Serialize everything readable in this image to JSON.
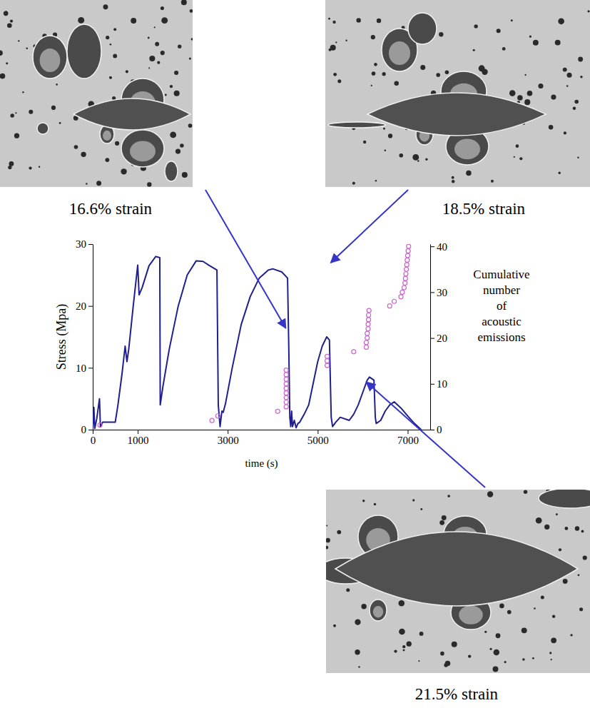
{
  "chart_data": {
    "type": "line",
    "ylabel": "Stress (Mpa)",
    "y2label": "Cumulative number of acoustic emissions",
    "xlabel": "time (s)",
    "xlim": [
      0,
      7500
    ],
    "xticks": [
      0,
      1000,
      3000,
      5000,
      7000
    ],
    "ylim": [
      0,
      30
    ],
    "yticks": [
      0,
      10,
      20,
      30
    ],
    "y2lim": [
      0,
      40.5
    ],
    "y2ticks": [
      0,
      10,
      20,
      30,
      40
    ],
    "series": [
      {
        "type": "line",
        "color": "#1f1f8f",
        "x": [
          0,
          25,
          45,
          90,
          150,
          170,
          220,
          500,
          560,
          650,
          720,
          760,
          800,
          900,
          1000,
          1030,
          1100,
          1250,
          1400,
          1490,
          1500,
          1560,
          1700,
          1900,
          2100,
          2300,
          2450,
          2600,
          2760,
          2790,
          2830,
          2870,
          2900,
          2950,
          3100,
          3300,
          3500,
          3700,
          3900,
          4000,
          4200,
          4330,
          4360,
          4380,
          4400,
          4420,
          4440,
          4480,
          4520,
          4560,
          4600,
          4700,
          4800,
          4900,
          5000,
          5100,
          5200,
          5260,
          5300,
          5330,
          5400,
          5500,
          5700,
          5800,
          5900,
          6000,
          6100,
          6150,
          6250,
          6280,
          6300,
          6400,
          6500,
          6600,
          6700,
          6850,
          7000,
          7150,
          7300
        ],
        "values": [
          0,
          3.6,
          0.2,
          1.8,
          5,
          0.5,
          1.2,
          1.2,
          4,
          9,
          13.5,
          11,
          13,
          20,
          26.6,
          21.8,
          23,
          26.5,
          28,
          27.8,
          4,
          7,
          13,
          20,
          25,
          27.3,
          27.2,
          26.5,
          25.8,
          4,
          0.5,
          3,
          2.8,
          4.2,
          10,
          17,
          21.5,
          24.5,
          25.8,
          26,
          25.5,
          24.5,
          12,
          2,
          0.5,
          3,
          0.5,
          1.5,
          0.3,
          1,
          1.2,
          2.5,
          4,
          7.5,
          11,
          13.5,
          15,
          14.5,
          2,
          0.5,
          1.2,
          2,
          1.5,
          2.5,
          4,
          6,
          8,
          8.5,
          8,
          2,
          1,
          1.5,
          3,
          4,
          4.5,
          3.5,
          2.2,
          1,
          0
        ]
      },
      {
        "type": "scatter",
        "axis": "y2",
        "color": "#cc66cc",
        "marker": "circle",
        "x": [
          160,
          2650,
          2780,
          4110,
          4300,
          4300,
          4300,
          4300,
          4300,
          4300,
          4300,
          4300,
          4300,
          5210,
          5210,
          5210,
          5800,
          6080,
          6080,
          6100,
          6100,
          6120,
          6120,
          6130,
          6130,
          6140,
          6600,
          6700,
          6850,
          6880,
          6920,
          6940,
          6950,
          6960,
          6970,
          6980,
          6990,
          7000,
          7010,
          7020
        ],
        "values": [
          1,
          2,
          3,
          4,
          5,
          6,
          7,
          8,
          9,
          10,
          11,
          12,
          13,
          14,
          15,
          16,
          17,
          18,
          19,
          20,
          21,
          22,
          23,
          24,
          25,
          26,
          27,
          28,
          29,
          30,
          31,
          32,
          33,
          34,
          35,
          36,
          37,
          38,
          39,
          40
        ]
      }
    ],
    "annotations": [
      {
        "text": "16.6% strain",
        "x": 4290,
        "y": 16.4
      },
      {
        "text": "18.5% strain",
        "x": 5290,
        "y": 27
      },
      {
        "text": "21.5% strain",
        "x": 6080,
        "y": 7.7
      }
    ]
  }
}
